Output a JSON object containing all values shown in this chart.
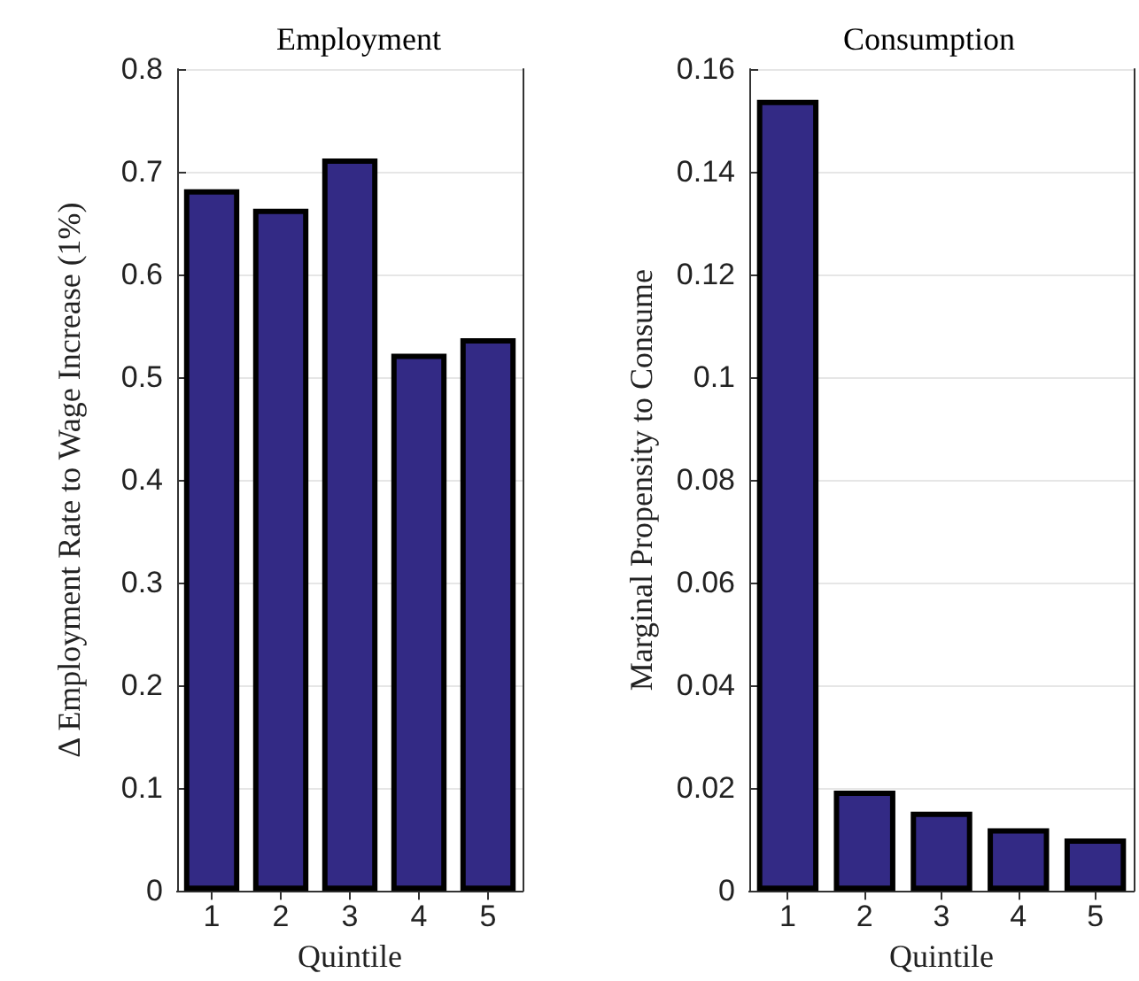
{
  "chart_data": [
    {
      "type": "bar",
      "title": "Employment",
      "xlabel": "Quintile",
      "ylabel": "Δ Employment Rate to Wage Increase (1%)",
      "categories": [
        "1",
        "2",
        "3",
        "4",
        "5"
      ],
      "values": [
        0.683,
        0.664,
        0.713,
        0.523,
        0.538
      ],
      "color": "#332a85",
      "ylim": [
        0,
        0.8
      ],
      "yticks": [
        0,
        0.1,
        0.2,
        0.3,
        0.4,
        0.5,
        0.6,
        0.7,
        0.8
      ],
      "grid": "y"
    },
    {
      "type": "bar",
      "title": "Consumption",
      "xlabel": "Quintile",
      "ylabel": "Marginal Propensity to Consume",
      "categories": [
        "1",
        "2",
        "3",
        "4",
        "5"
      ],
      "values": [
        0.154,
        0.0195,
        0.0154,
        0.0122,
        0.0102
      ],
      "color": "#332a85",
      "ylim": [
        0,
        0.16
      ],
      "yticks": [
        0,
        0.02,
        0.04,
        0.06,
        0.08,
        0.1,
        0.12,
        0.14,
        0.16
      ],
      "grid": "y"
    }
  ]
}
